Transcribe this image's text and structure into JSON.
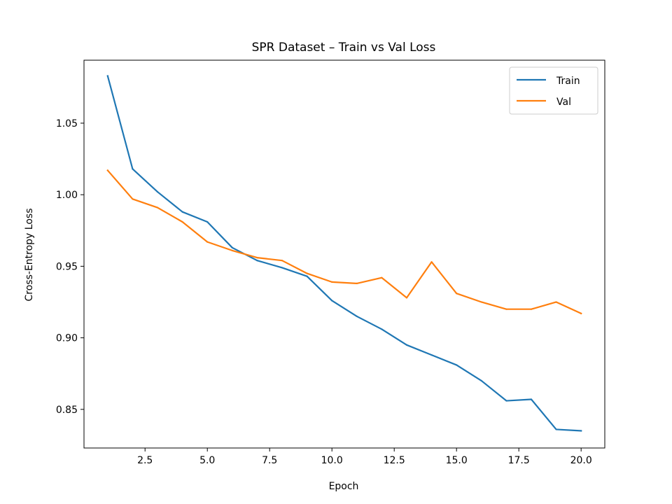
{
  "chart_data": {
    "type": "line",
    "title": "SPR Dataset – Train vs Val Loss",
    "xlabel": "Epoch",
    "ylabel": "Cross-Entropy Loss",
    "xlim": [
      0.05,
      20.95
    ],
    "ylim": [
      0.823,
      1.094
    ],
    "xticks": [
      2.5,
      5.0,
      7.5,
      10.0,
      12.5,
      15.0,
      17.5,
      20.0
    ],
    "xtick_labels": [
      "2.5",
      "5.0",
      "7.5",
      "10.0",
      "12.5",
      "15.0",
      "17.5",
      "20.0"
    ],
    "yticks": [
      0.85,
      0.9,
      0.95,
      1.0,
      1.05
    ],
    "ytick_labels": [
      "0.85",
      "0.90",
      "0.95",
      "1.00",
      "1.05"
    ],
    "grid": false,
    "legend_position": "top-right",
    "x": [
      1,
      2,
      3,
      4,
      5,
      6,
      7,
      8,
      9,
      10,
      11,
      12,
      13,
      14,
      15,
      16,
      17,
      18,
      19,
      20
    ],
    "series": [
      {
        "name": "Train",
        "color": "#1f77b4",
        "values": [
          1.083,
          1.018,
          1.002,
          0.988,
          0.981,
          0.963,
          0.954,
          0.949,
          0.943,
          0.926,
          0.915,
          0.906,
          0.895,
          0.888,
          0.881,
          0.87,
          0.856,
          0.857,
          0.836,
          0.835
        ]
      },
      {
        "name": "Val",
        "color": "#ff7f0e",
        "values": [
          1.017,
          0.997,
          0.991,
          0.981,
          0.967,
          0.961,
          0.956,
          0.954,
          0.945,
          0.939,
          0.938,
          0.942,
          0.928,
          0.953,
          0.931,
          0.925,
          0.92,
          0.92,
          0.925,
          0.917
        ]
      }
    ]
  }
}
